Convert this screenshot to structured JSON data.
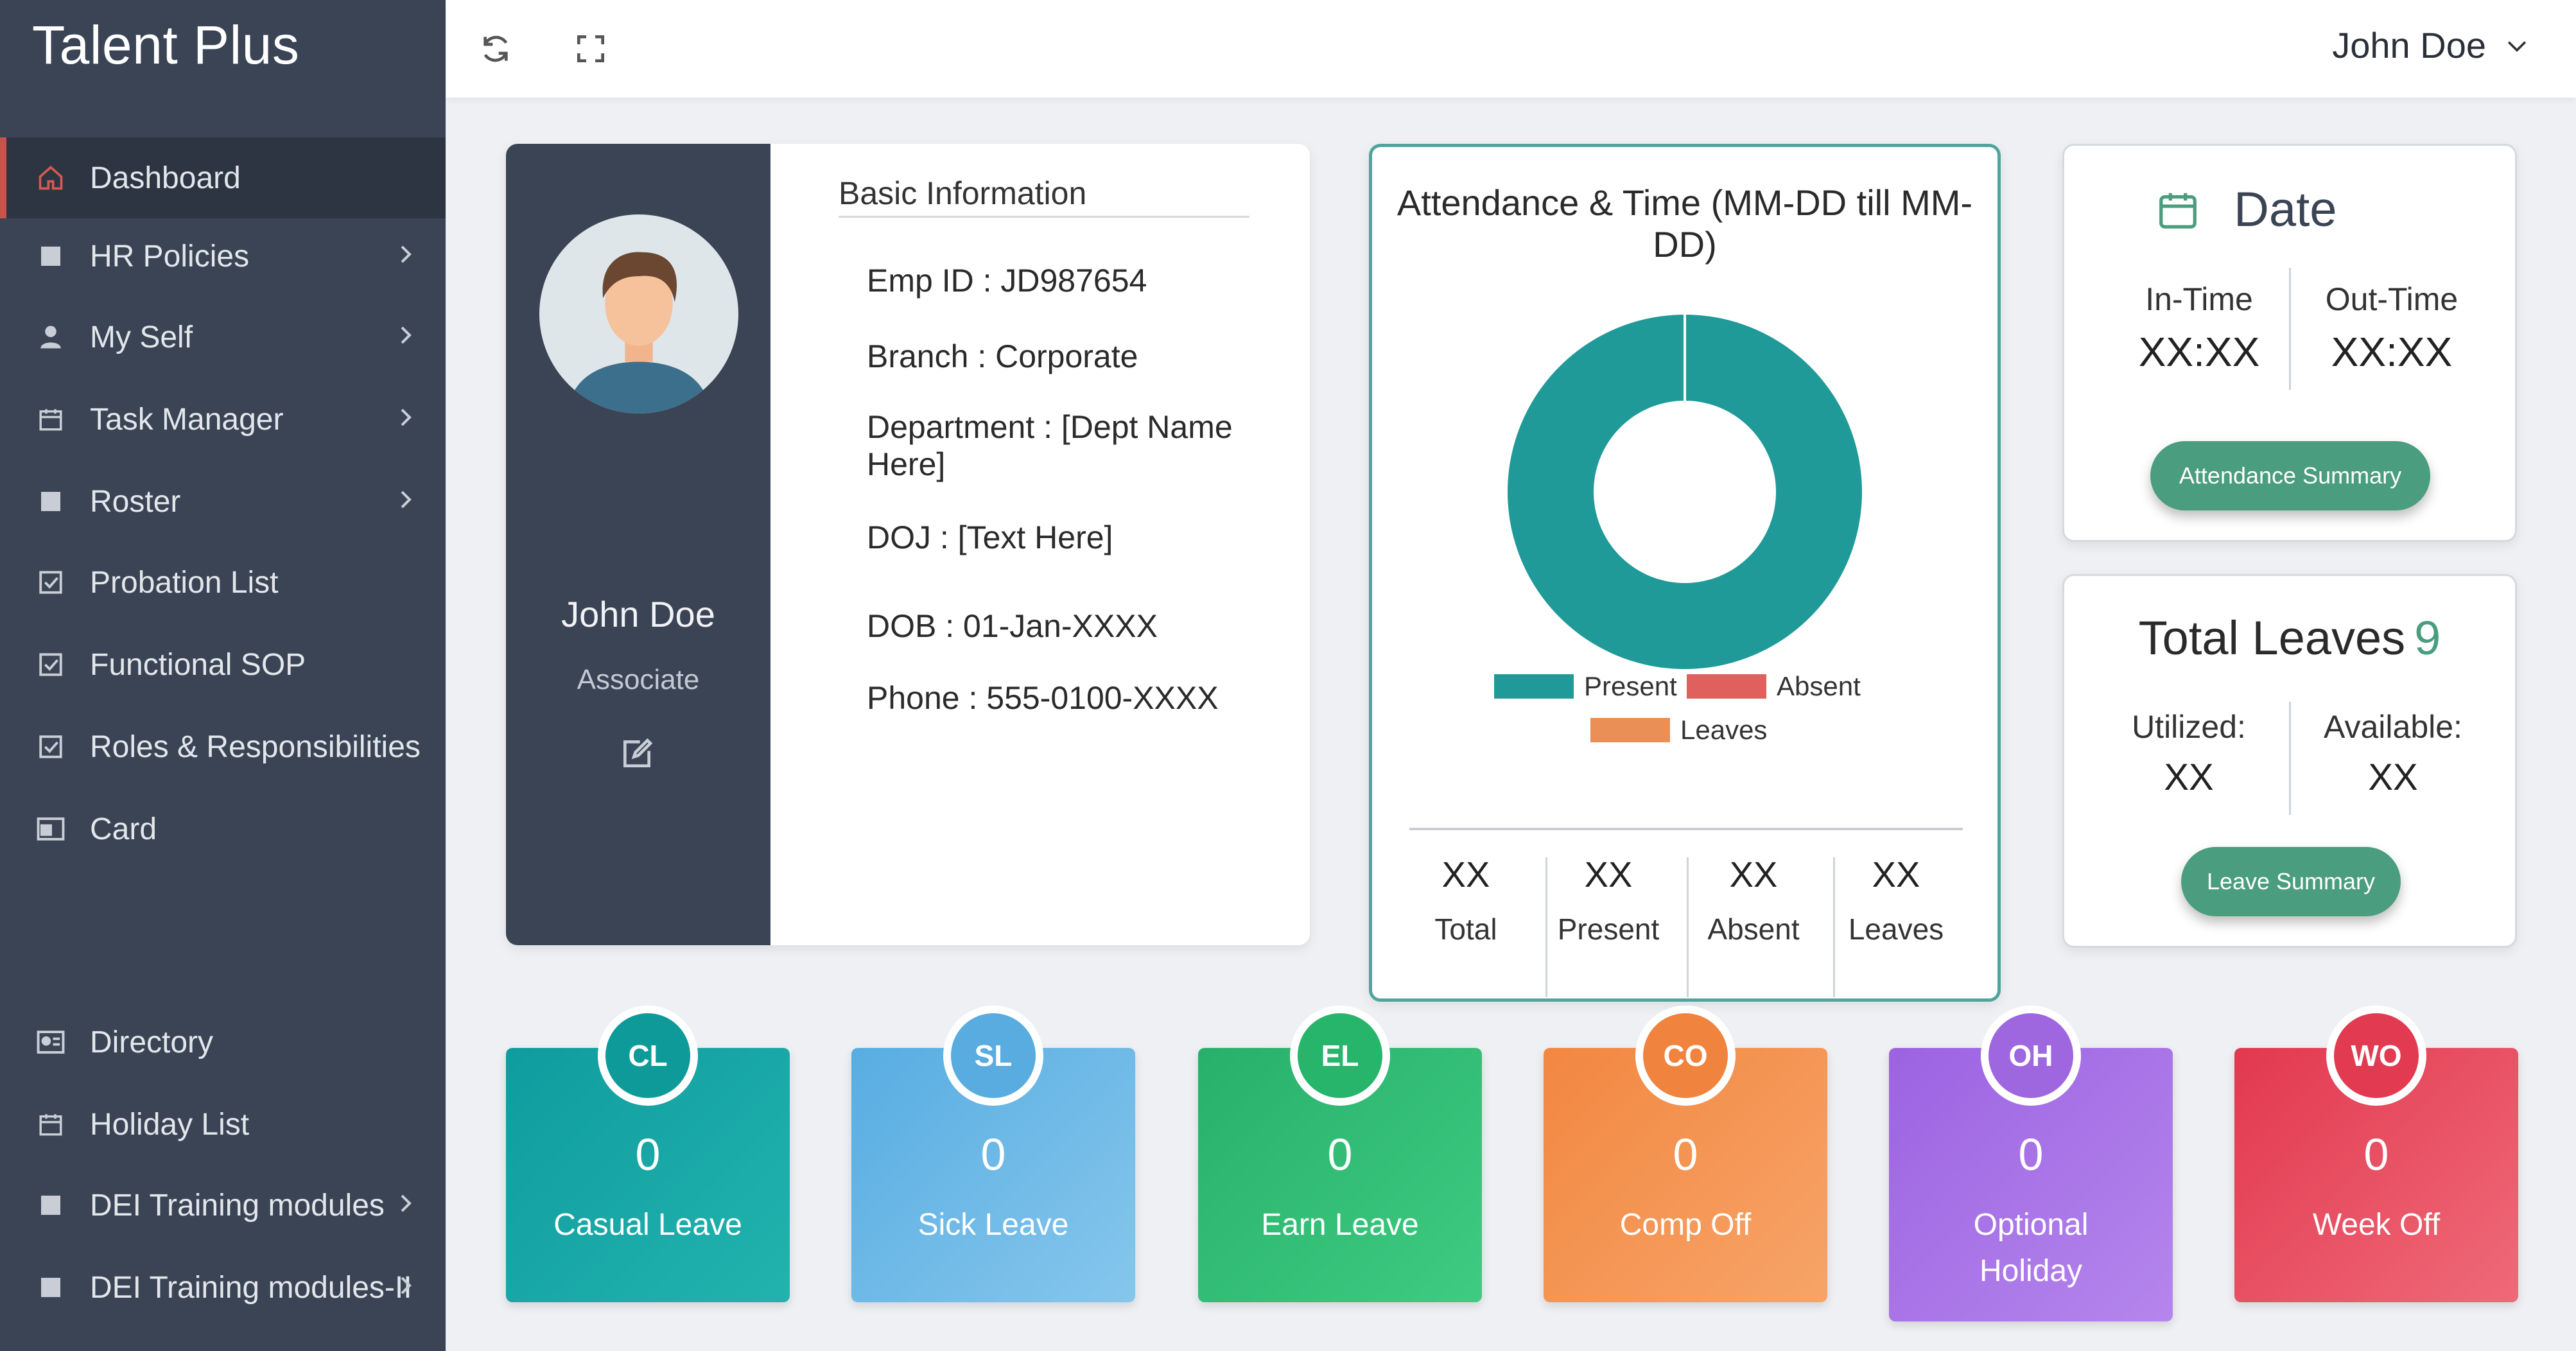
{
  "app": {
    "title": "Talent Plus"
  },
  "sidebar": {
    "items": [
      {
        "label": "Dashboard",
        "icon": "home-icon",
        "active": true,
        "has_submenu": false
      },
      {
        "label": "HR Policies",
        "icon": "document-icon",
        "has_submenu": true
      },
      {
        "label": "My Self",
        "icon": "user-icon",
        "has_submenu": true
      },
      {
        "label": "Task Manager",
        "icon": "calendar-icon",
        "has_submenu": true
      },
      {
        "label": "Roster",
        "icon": "document-icon",
        "has_submenu": true
      },
      {
        "label": "Probation List",
        "icon": "checkbox-icon",
        "has_submenu": false
      },
      {
        "label": "Functional SOP",
        "icon": "checkbox-icon",
        "has_submenu": false
      },
      {
        "label": "Roles & Responsibilities",
        "icon": "checkbox-icon",
        "has_submenu": false
      },
      {
        "label": "Card",
        "icon": "card-icon",
        "has_submenu": false
      },
      {
        "label": "Directory",
        "icon": "directory-icon",
        "has_submenu": false
      },
      {
        "label": "Holiday List",
        "icon": "calendar-icon",
        "has_submenu": false
      },
      {
        "label": "DEI Training modules",
        "icon": "document-icon",
        "has_submenu": true
      },
      {
        "label": "DEI Training modules-II",
        "icon": "document-icon",
        "has_submenu": true
      }
    ]
  },
  "header": {
    "user_name": "John Doe",
    "icons": [
      "refresh-icon",
      "fullscreen-icon",
      "chevron-down-icon"
    ]
  },
  "profile": {
    "name": "John Doe",
    "role": "Associate",
    "basic_title": "Basic Information",
    "fields": {
      "emp_id": "Emp ID : JD987654",
      "branch": "Branch : Corporate",
      "department": "Department : [Dept Name Here]",
      "doj": "DOJ : [Text Here]",
      "dob": "DOB : 01-Jan-XXXX",
      "phone": "Phone : 555-0100-XXXX"
    }
  },
  "attendance": {
    "title": "Attendance & Time (MM-DD till MM-DD)",
    "stats": [
      {
        "value": "XX",
        "label": "Total"
      },
      {
        "value": "XX",
        "label": "Present"
      },
      {
        "value": "XX",
        "label": "Absent"
      },
      {
        "value": "XX",
        "label": "Leaves"
      }
    ]
  },
  "chart_data": {
    "type": "pie",
    "categories": [
      "Present",
      "Absent",
      "Leaves"
    ],
    "values": [
      100,
      0,
      0
    ],
    "colors": [
      "#1f9a98",
      "#e0605e",
      "#ea8f55"
    ],
    "title": "",
    "legend_position": "bottom"
  },
  "date_card": {
    "title": "Date",
    "in_label": "In-Time",
    "in_value": "XX:XX",
    "out_label": "Out-Time",
    "out_value": "XX:XX",
    "button": "Attendance Summary"
  },
  "leaves_card": {
    "title": "Total Leaves",
    "total": "9",
    "utilized_label": "Utilized:",
    "utilized_value": "XX",
    "available_label": "Available:",
    "available_value": "XX",
    "button": "Leave Summary"
  },
  "leave_tiles": [
    {
      "code": "CL",
      "count": "0",
      "name": "Casual Leave",
      "color": "#13a3a4",
      "badge": "#0f9a9a"
    },
    {
      "code": "SL",
      "count": "0",
      "name": "Sick Leave",
      "color": "#63b4e2",
      "badge": "#58acdf"
    },
    {
      "code": "EL",
      "count": "0",
      "name": "Earn Leave",
      "color": "#2fba72",
      "badge": "#27b46b"
    },
    {
      "code": "CO",
      "count": "0",
      "name": "Comp Off",
      "color": "#f4924b",
      "badge": "#f0843f"
    },
    {
      "code": "OH",
      "count": "0",
      "name": "Optional Holiday",
      "color": "#a873e6",
      "badge": "#9e67e0"
    },
    {
      "code": "WO",
      "count": "0",
      "name": "Week Off",
      "color": "#e84d5f",
      "badge": "#e23a50"
    }
  ]
}
